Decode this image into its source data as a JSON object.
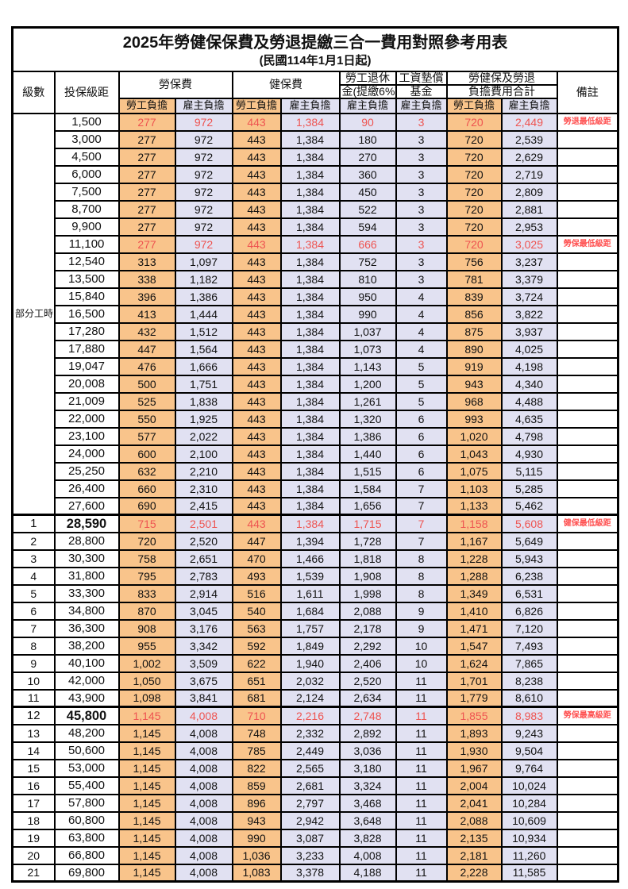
{
  "title": "2025年勞健保保費及勞退提繳三合一費用對照參考用表",
  "subtitle": "(民國114年1月1日起)",
  "colors": {
    "employee_burden_bg": "#F9C48B",
    "employer_burden_bg": "#E1E1F2",
    "highlight_value_red": "#EE5451",
    "note_text_red": "#FF5050",
    "grid_line": "#000000"
  },
  "header": {
    "level": "級數",
    "bracket": "投保級距",
    "labor_ins": "勞保費",
    "health_ins": "健保費",
    "pension_line1": "勞工退休",
    "pension_line2": "金(提繳6%)",
    "wage_fund_line1": "工資墊償",
    "wage_fund_line2": "基金",
    "total_line1": "勞健保及勞退",
    "total_line2": "負擔費用合計",
    "note": "備註",
    "employee": "勞工負擔",
    "employer": "雇主負擔"
  },
  "group": {
    "label": "部分工時",
    "span": 23
  },
  "rows": [
    {
      "bracket": "1,500",
      "v": [
        "277",
        "972",
        "443",
        "1,384",
        "90",
        "3",
        "720",
        "2,449"
      ],
      "note": "勞退最低級距",
      "red": true
    },
    {
      "bracket": "3,000",
      "v": [
        "277",
        "972",
        "443",
        "1,384",
        "180",
        "3",
        "720",
        "2,539"
      ]
    },
    {
      "bracket": "4,500",
      "v": [
        "277",
        "972",
        "443",
        "1,384",
        "270",
        "3",
        "720",
        "2,629"
      ]
    },
    {
      "bracket": "6,000",
      "v": [
        "277",
        "972",
        "443",
        "1,384",
        "360",
        "3",
        "720",
        "2,719"
      ]
    },
    {
      "bracket": "7,500",
      "v": [
        "277",
        "972",
        "443",
        "1,384",
        "450",
        "3",
        "720",
        "2,809"
      ]
    },
    {
      "bracket": "8,700",
      "v": [
        "277",
        "972",
        "443",
        "1,384",
        "522",
        "3",
        "720",
        "2,881"
      ]
    },
    {
      "bracket": "9,900",
      "v": [
        "277",
        "972",
        "443",
        "1,384",
        "594",
        "3",
        "720",
        "2,953"
      ]
    },
    {
      "bracket": "11,100",
      "v": [
        "277",
        "972",
        "443",
        "1,384",
        "666",
        "3",
        "720",
        "3,025"
      ],
      "note": "勞保最低級距",
      "red": true
    },
    {
      "bracket": "12,540",
      "v": [
        "313",
        "1,097",
        "443",
        "1,384",
        "752",
        "3",
        "756",
        "3,237"
      ]
    },
    {
      "bracket": "13,500",
      "v": [
        "338",
        "1,182",
        "443",
        "1,384",
        "810",
        "3",
        "781",
        "3,379"
      ]
    },
    {
      "bracket": "15,840",
      "v": [
        "396",
        "1,386",
        "443",
        "1,384",
        "950",
        "4",
        "839",
        "3,724"
      ]
    },
    {
      "bracket": "16,500",
      "v": [
        "413",
        "1,444",
        "443",
        "1,384",
        "990",
        "4",
        "856",
        "3,822"
      ]
    },
    {
      "bracket": "17,280",
      "v": [
        "432",
        "1,512",
        "443",
        "1,384",
        "1,037",
        "4",
        "875",
        "3,937"
      ]
    },
    {
      "bracket": "17,880",
      "v": [
        "447",
        "1,564",
        "443",
        "1,384",
        "1,073",
        "4",
        "890",
        "4,025"
      ]
    },
    {
      "bracket": "19,047",
      "v": [
        "476",
        "1,666",
        "443",
        "1,384",
        "1,143",
        "5",
        "919",
        "4,198"
      ]
    },
    {
      "bracket": "20,008",
      "v": [
        "500",
        "1,751",
        "443",
        "1,384",
        "1,200",
        "5",
        "943",
        "4,340"
      ]
    },
    {
      "bracket": "21,009",
      "v": [
        "525",
        "1,838",
        "443",
        "1,384",
        "1,261",
        "5",
        "968",
        "4,488"
      ]
    },
    {
      "bracket": "22,000",
      "v": [
        "550",
        "1,925",
        "443",
        "1,384",
        "1,320",
        "6",
        "993",
        "4,635"
      ]
    },
    {
      "bracket": "23,100",
      "v": [
        "577",
        "2,022",
        "443",
        "1,384",
        "1,386",
        "6",
        "1,020",
        "4,798"
      ]
    },
    {
      "bracket": "24,000",
      "v": [
        "600",
        "2,100",
        "443",
        "1,384",
        "1,440",
        "6",
        "1,043",
        "4,930"
      ]
    },
    {
      "bracket": "25,250",
      "v": [
        "632",
        "2,210",
        "443",
        "1,384",
        "1,515",
        "6",
        "1,075",
        "5,115"
      ]
    },
    {
      "bracket": "26,400",
      "v": [
        "660",
        "2,310",
        "443",
        "1,384",
        "1,584",
        "7",
        "1,103",
        "5,285"
      ]
    },
    {
      "bracket": "27,600",
      "v": [
        "690",
        "2,415",
        "443",
        "1,384",
        "1,656",
        "7",
        "1,133",
        "5,462"
      ]
    },
    {
      "level": "1",
      "bracket": "28,590",
      "v": [
        "715",
        "2,501",
        "443",
        "1,384",
        "1,715",
        "7",
        "1,158",
        "5,608"
      ],
      "note": "健保最低級距",
      "red": true,
      "thick": true,
      "bold": true
    },
    {
      "level": "2",
      "bracket": "28,800",
      "v": [
        "720",
        "2,520",
        "447",
        "1,394",
        "1,728",
        "7",
        "1,167",
        "5,649"
      ]
    },
    {
      "level": "3",
      "bracket": "30,300",
      "v": [
        "758",
        "2,651",
        "470",
        "1,466",
        "1,818",
        "8",
        "1,228",
        "5,943"
      ]
    },
    {
      "level": "4",
      "bracket": "31,800",
      "v": [
        "795",
        "2,783",
        "493",
        "1,539",
        "1,908",
        "8",
        "1,288",
        "6,238"
      ]
    },
    {
      "level": "5",
      "bracket": "33,300",
      "v": [
        "833",
        "2,914",
        "516",
        "1,611",
        "1,998",
        "8",
        "1,349",
        "6,531"
      ]
    },
    {
      "level": "6",
      "bracket": "34,800",
      "v": [
        "870",
        "3,045",
        "540",
        "1,684",
        "2,088",
        "9",
        "1,410",
        "6,826"
      ]
    },
    {
      "level": "7",
      "bracket": "36,300",
      "v": [
        "908",
        "3,176",
        "563",
        "1,757",
        "2,178",
        "9",
        "1,471",
        "7,120"
      ]
    },
    {
      "level": "8",
      "bracket": "38,200",
      "v": [
        "955",
        "3,342",
        "592",
        "1,849",
        "2,292",
        "10",
        "1,547",
        "7,493"
      ]
    },
    {
      "level": "9",
      "bracket": "40,100",
      "v": [
        "1,002",
        "3,509",
        "622",
        "1,940",
        "2,406",
        "10",
        "1,624",
        "7,865"
      ]
    },
    {
      "level": "10",
      "bracket": "42,000",
      "v": [
        "1,050",
        "3,675",
        "651",
        "2,032",
        "2,520",
        "11",
        "1,701",
        "8,238"
      ]
    },
    {
      "level": "11",
      "bracket": "43,900",
      "v": [
        "1,098",
        "3,841",
        "681",
        "2,124",
        "2,634",
        "11",
        "1,779",
        "8,610"
      ]
    },
    {
      "level": "12",
      "bracket": "45,800",
      "v": [
        "1,145",
        "4,008",
        "710",
        "2,216",
        "2,748",
        "11",
        "1,855",
        "8,983"
      ],
      "note": "勞保最高級距",
      "red": true,
      "thick": true,
      "bold": true
    },
    {
      "level": "13",
      "bracket": "48,200",
      "v": [
        "1,145",
        "4,008",
        "748",
        "2,332",
        "2,892",
        "11",
        "1,893",
        "9,243"
      ]
    },
    {
      "level": "14",
      "bracket": "50,600",
      "v": [
        "1,145",
        "4,008",
        "785",
        "2,449",
        "3,036",
        "11",
        "1,930",
        "9,504"
      ]
    },
    {
      "level": "15",
      "bracket": "53,000",
      "v": [
        "1,145",
        "4,008",
        "822",
        "2,565",
        "3,180",
        "11",
        "1,967",
        "9,764"
      ]
    },
    {
      "level": "16",
      "bracket": "55,400",
      "v": [
        "1,145",
        "4,008",
        "859",
        "2,681",
        "3,324",
        "11",
        "2,004",
        "10,024"
      ]
    },
    {
      "level": "17",
      "bracket": "57,800",
      "v": [
        "1,145",
        "4,008",
        "896",
        "2,797",
        "3,468",
        "11",
        "2,041",
        "10,284"
      ]
    },
    {
      "level": "18",
      "bracket": "60,800",
      "v": [
        "1,145",
        "4,008",
        "943",
        "2,942",
        "3,648",
        "11",
        "2,088",
        "10,609"
      ]
    },
    {
      "level": "19",
      "bracket": "63,800",
      "v": [
        "1,145",
        "4,008",
        "990",
        "3,087",
        "3,828",
        "11",
        "2,135",
        "10,934"
      ]
    },
    {
      "level": "20",
      "bracket": "66,800",
      "v": [
        "1,145",
        "4,008",
        "1,036",
        "3,233",
        "4,008",
        "11",
        "2,181",
        "11,260"
      ]
    },
    {
      "level": "21",
      "bracket": "69,800",
      "v": [
        "1,145",
        "4,008",
        "1,083",
        "3,378",
        "4,188",
        "11",
        "2,228",
        "11,585"
      ]
    }
  ]
}
